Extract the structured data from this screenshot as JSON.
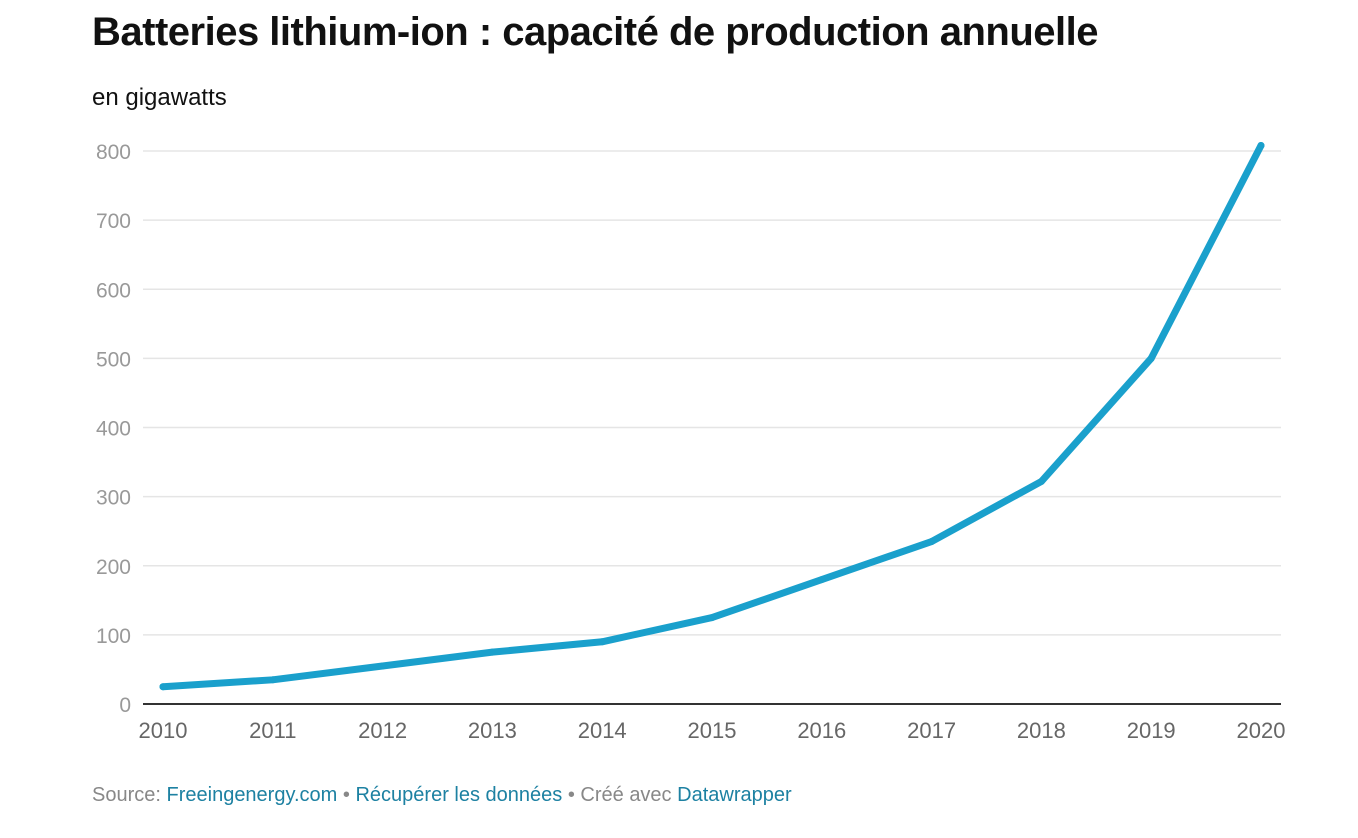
{
  "header": {
    "title": "Batteries lithium-ion : capacité de production annuelle",
    "subtitle": "en gigawatts"
  },
  "footer": {
    "source_label": "Source:",
    "source_link": "Freeingenergy.com",
    "separator1": "•",
    "download_link": "Récupérer les données",
    "separator2": "•",
    "created_with": "Créé avec",
    "tool_link": "Datawrapper"
  },
  "colors": {
    "line": "#1aa0cc",
    "grid": "#e5e5e5",
    "axis": "#333333",
    "tick_text": "#999999",
    "x_tick_text": "#666666",
    "link": "#1d81a2"
  },
  "chart_data": {
    "type": "line",
    "title": "Batteries lithium-ion : capacité de production annuelle",
    "subtitle": "en gigawatts",
    "x": [
      2010,
      2011,
      2012,
      2013,
      2014,
      2015,
      2016,
      2017,
      2018,
      2019,
      2020
    ],
    "series": [
      {
        "values": [
          25,
          35,
          55,
          75,
          90,
          125,
          180,
          235,
          322,
          500,
          808
        ]
      }
    ],
    "xticks": [
      "2010",
      "2011",
      "2012",
      "2013",
      "2014",
      "2015",
      "2016",
      "2017",
      "2018",
      "2019",
      "2020"
    ],
    "yticks": [
      0,
      100,
      200,
      300,
      400,
      500,
      600,
      700,
      800
    ],
    "ylim": [
      0,
      800
    ],
    "xlim": [
      2010,
      2020
    ],
    "grid": true,
    "legend": "none"
  }
}
